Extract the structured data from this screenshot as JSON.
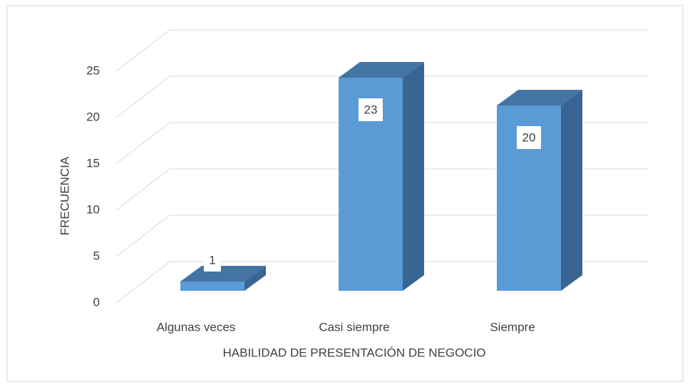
{
  "chart_data": {
    "type": "bar3d",
    "x_label": "HABILIDAD DE PRESENTACIÓN DE NEGOCIO",
    "y_label": "FRECUENCIA",
    "categories": [
      "Algunas veces",
      "Casi siempre",
      "Siempre"
    ],
    "values": [
      1,
      23,
      20
    ],
    "color": "#5b9bd5",
    "ylim": [
      0,
      25
    ],
    "yticks": [
      0,
      5,
      10,
      15,
      20,
      25
    ],
    "grid": true
  }
}
